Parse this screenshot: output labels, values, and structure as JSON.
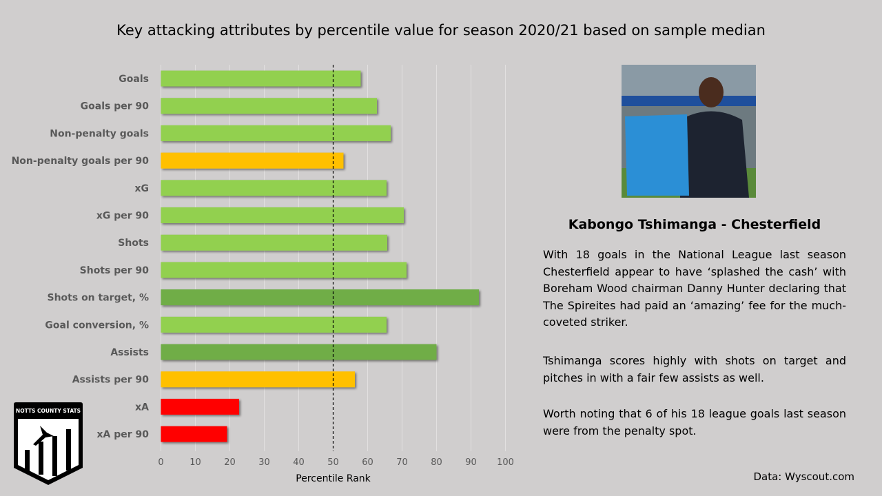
{
  "chart_data": {
    "type": "bar",
    "orientation": "horizontal",
    "title": "Key attacking attributes by percentile value for season 2020/21 based on sample median",
    "xlabel": "Percentile Rank",
    "ylabel": "",
    "xlim": [
      0,
      100
    ],
    "xticks": [
      "0",
      "10",
      "20",
      "30",
      "40",
      "50",
      "60",
      "70",
      "80",
      "90",
      "100"
    ],
    "reference_line": {
      "value": 50,
      "style": "dashed"
    },
    "grid": "vertical",
    "categories": [
      "Goals",
      "Goals per 90",
      "Non-penalty goals",
      "Non-penalty goals per 90",
      "xG",
      "xG per 90",
      "Shots",
      "Shots per 90",
      "Shots on target, %",
      "Goal conversion, %",
      "Assists",
      "Assists per 90",
      "xA",
      "xA per 90"
    ],
    "values": [
      58,
      62.7,
      66.7,
      53,
      65.5,
      70.5,
      65.7,
      71.3,
      92.3,
      65.5,
      80,
      56.3,
      22.7,
      19.2
    ],
    "colors": [
      "#92d050",
      "#92d050",
      "#92d050",
      "#ffc000",
      "#92d050",
      "#92d050",
      "#92d050",
      "#92d050",
      "#70ad47",
      "#92d050",
      "#70ad47",
      "#ffc000",
      "#ff0000",
      "#ff0000"
    ]
  },
  "player": {
    "name": "Kabongo Tshimanga - Chesterfield"
  },
  "paragraphs": [
    "With 18 goals in the National League last season Chesterfield appear to have ‘splashed the cash’ with Boreham Wood chairman Danny Hunter declaring that The Spireites had paid an ‘amazing’ fee for the much-coveted striker.",
    "Tshimanga scores highly with shots on target and pitches in with a fair few assists as well.",
    "Worth noting that 6 of his 18 league goals last season were from the penalty spot."
  ],
  "source": "Data: Wyscout.com",
  "logo_text": "NOTTS COUNTY STATS"
}
